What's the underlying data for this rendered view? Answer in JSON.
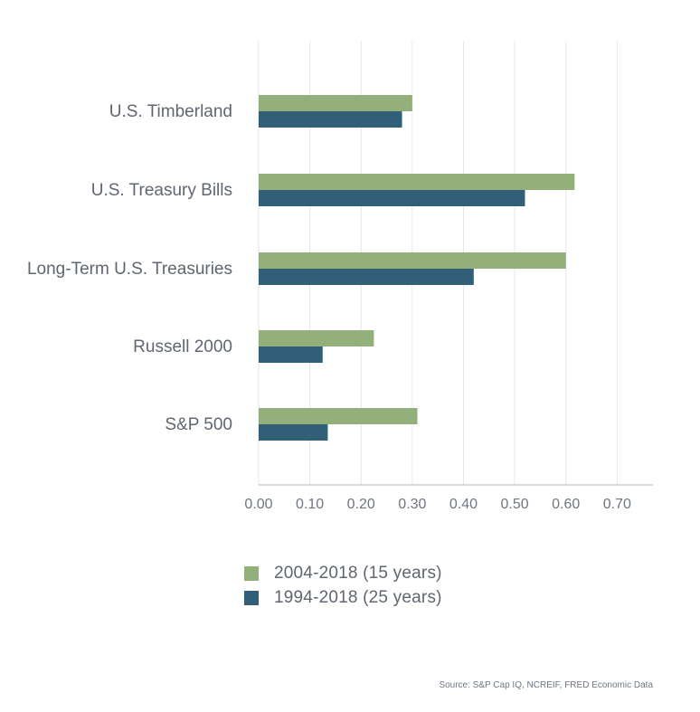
{
  "colors": {
    "series_a": "#93b07a",
    "series_b": "#325f78",
    "grid": "#e6e6e6",
    "axis": "#b5b5b5"
  },
  "chart_data": {
    "type": "bar",
    "orientation": "horizontal",
    "categories": [
      "U.S. Timberland",
      "U.S. Treasury Bills",
      "Long-Term U.S. Treasuries",
      "Russell 2000",
      "S&P 500"
    ],
    "series": [
      {
        "name": "2004-2018 (15 years)",
        "values": [
          0.3,
          0.617,
          0.6,
          0.225,
          0.31
        ]
      },
      {
        "name": "1994-2018 (25 years)",
        "values": [
          0.28,
          0.52,
          0.42,
          0.125,
          0.135
        ]
      }
    ],
    "xlim": [
      0,
      0.77
    ],
    "xticks": [
      "0.00",
      "0.10",
      "0.20",
      "0.30",
      "0.40",
      "0.50",
      "0.60",
      "0.70"
    ],
    "grid": true,
    "legend_placement": "bottom-left"
  },
  "legend": [
    {
      "label": "2004-2018 (15 years)"
    },
    {
      "label": "1994-2018 (25 years)"
    }
  ],
  "source": "Source: S&P Cap IQ, NCREIF, FRED Economic Data"
}
